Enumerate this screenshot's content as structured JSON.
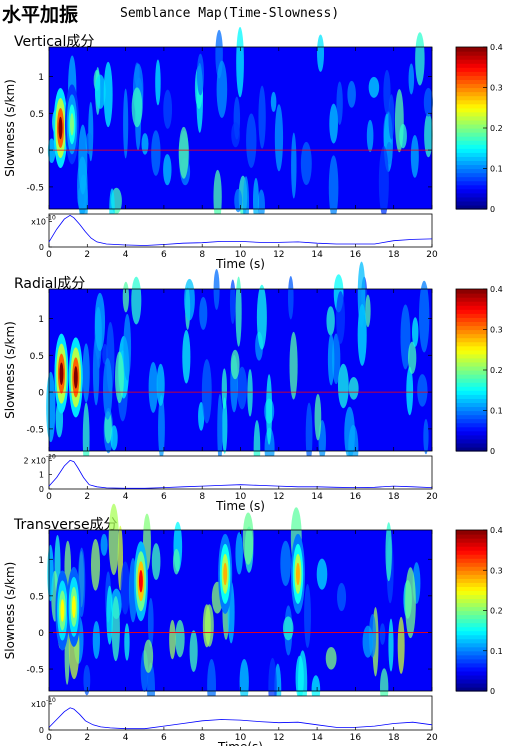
{
  "header": {
    "title": "水平加振",
    "subtitle": "Semblance Map(Time-Slowness)"
  },
  "chart_data": [
    {
      "type": "heatmap",
      "title": "Vertical成分",
      "xlabel": "",
      "ylabel": "Slowness  (s/km)",
      "xlim": [
        0,
        20
      ],
      "ylim": [
        -0.8,
        1.4
      ],
      "yticks": [
        -0.5,
        0,
        0.5,
        1
      ],
      "zlim": [
        0,
        0.4
      ],
      "colorbar_ticks": [
        0,
        0.1,
        0.2,
        0.3,
        0.4
      ],
      "colormap": "jet",
      "reference_line": {
        "y": 0,
        "color": "#ff0000"
      },
      "peaks": [
        {
          "t": 0.6,
          "s": 0.3,
          "value": 0.4
        },
        {
          "t": 1.2,
          "s": 0.35,
          "value": 0.2
        }
      ],
      "trace": {
        "type": "line",
        "xlabel": "Time (s)",
        "ytick_labels": [
          "0",
          "1"
        ],
        "y_scale_label": "x10",
        "y_scale_exp": "-10",
        "ylim": [
          0,
          1.3
        ],
        "x": [
          0,
          0.4,
          0.8,
          1.1,
          1.3,
          1.6,
          1.9,
          2.2,
          2.5,
          3,
          3.5,
          4,
          5,
          6,
          7,
          8,
          9,
          10,
          11,
          12,
          13,
          14,
          15,
          16,
          17,
          18,
          19,
          20
        ],
        "y": [
          0.2,
          0.7,
          1.1,
          1.25,
          1.15,
          0.9,
          0.6,
          0.35,
          0.2,
          0.12,
          0.1,
          0.08,
          0.06,
          0.1,
          0.15,
          0.17,
          0.22,
          0.22,
          0.18,
          0.18,
          0.2,
          0.15,
          0.12,
          0.12,
          0.12,
          0.25,
          0.3,
          0.32
        ]
      }
    },
    {
      "type": "heatmap",
      "title": "Radial成分",
      "xlabel": "",
      "ylabel": "Slowness  (s/km)",
      "xlim": [
        0,
        20
      ],
      "ylim": [
        -0.8,
        1.4
      ],
      "yticks": [
        -0.5,
        0,
        0.5,
        1
      ],
      "zlim": [
        0,
        0.4
      ],
      "colorbar_ticks": [
        0,
        0.1,
        0.2,
        0.3,
        0.4
      ],
      "colormap": "jet",
      "reference_line": {
        "y": 0,
        "color": "#ff0000"
      },
      "peaks": [
        {
          "t": 0.65,
          "s": 0.25,
          "value": 0.4
        },
        {
          "t": 1.4,
          "s": 0.2,
          "value": 0.4
        }
      ],
      "trace": {
        "type": "line",
        "xlabel": "Time (s)",
        "ytick_labels": [
          "0",
          "1",
          "2"
        ],
        "y_scale_label": "2 x10",
        "y_scale_exp": "-10",
        "ylim": [
          0,
          2.3
        ],
        "x": [
          0,
          0.4,
          0.8,
          1.1,
          1.3,
          1.5,
          1.8,
          2.1,
          2.5,
          3,
          4,
          5,
          6,
          7,
          8,
          9,
          10,
          11,
          12,
          13,
          14,
          15,
          16,
          17,
          18,
          19,
          20
        ],
        "y": [
          0.2,
          0.8,
          1.6,
          2.0,
          1.9,
          1.5,
          0.8,
          0.3,
          0.15,
          0.08,
          0.05,
          0.05,
          0.1,
          0.15,
          0.2,
          0.25,
          0.3,
          0.25,
          0.2,
          0.15,
          0.15,
          0.12,
          0.1,
          0.12,
          0.2,
          0.15,
          0.1
        ]
      }
    },
    {
      "type": "heatmap",
      "title": "Transverse成分",
      "xlabel": "",
      "ylabel": "Slowness  (s/km)",
      "xlim": [
        0,
        20
      ],
      "ylim": [
        -0.8,
        1.4
      ],
      "yticks": [
        -0.5,
        0,
        0.5,
        1
      ],
      "zlim": [
        0,
        0.4
      ],
      "colorbar_ticks": [
        0,
        0.1,
        0.2,
        0.3,
        0.4
      ],
      "colormap": "jet",
      "reference_line": {
        "y": 0,
        "color": "#ff0000"
      },
      "peaks": [
        {
          "t": 0.7,
          "s": 0.3,
          "value": 0.25
        },
        {
          "t": 1.3,
          "s": 0.35,
          "value": 0.25
        },
        {
          "t": 4.8,
          "s": 0.7,
          "value": 0.35
        },
        {
          "t": 9.2,
          "s": 0.8,
          "value": 0.28
        },
        {
          "t": 13.0,
          "s": 0.8,
          "value": 0.28
        }
      ],
      "trace": {
        "type": "line",
        "xlabel": "Time(s)",
        "ytick_labels": [
          "0",
          "1"
        ],
        "y_scale_label": "x10",
        "y_scale_exp": "-10",
        "ylim": [
          0,
          1.3
        ],
        "x": [
          0,
          0.4,
          0.8,
          1.1,
          1.3,
          1.6,
          1.9,
          2.3,
          2.7,
          3.2,
          4,
          5,
          6,
          7,
          8,
          9,
          10,
          11,
          12,
          13,
          14,
          15,
          16,
          17,
          18,
          19,
          20
        ],
        "y": [
          0.1,
          0.4,
          0.7,
          0.85,
          0.8,
          0.6,
          0.35,
          0.2,
          0.12,
          0.08,
          0.05,
          0.05,
          0.15,
          0.25,
          0.35,
          0.4,
          0.38,
          0.32,
          0.28,
          0.3,
          0.2,
          0.1,
          0.1,
          0.15,
          0.25,
          0.3,
          0.2
        ]
      }
    }
  ]
}
